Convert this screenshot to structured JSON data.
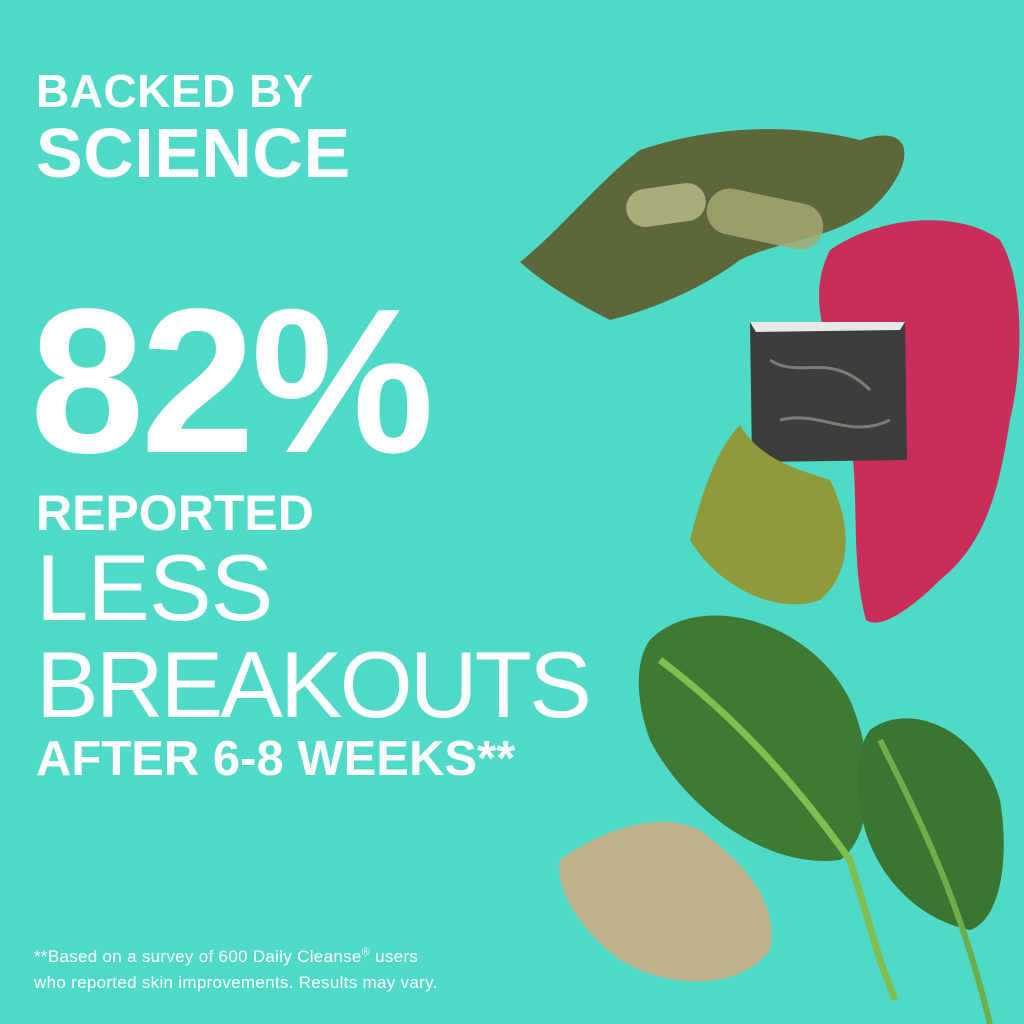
{
  "background_color": "#4fdac8",
  "headline": {
    "line1": "BACKED BY",
    "line2": "SCIENCE"
  },
  "stat": {
    "value": "82%",
    "line1": "REPORTED",
    "line2": "LESS",
    "line3": "BREAKOUTS",
    "line4": "AFTER 6-8 WEEKS**"
  },
  "footnote": {
    "line1_a": "**Based on a survey of 600 Daily Cleanse",
    "line1_reg": "®",
    "line1_b": " users",
    "line2": "who reported skin improvements. Results may vary."
  },
  "images": [
    "green-powder-with-capsule",
    "red-powder",
    "charcoal-stone",
    "matcha-powder",
    "spinach-leaves",
    "dried-root-flakes"
  ]
}
